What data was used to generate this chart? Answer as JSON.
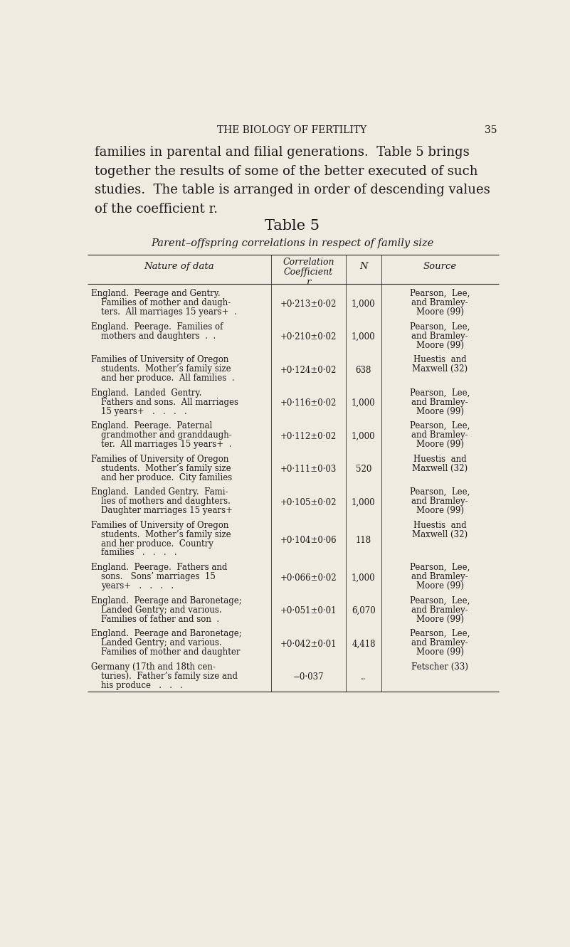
{
  "bg_color": "#f0ebe0",
  "page_number": "35",
  "header_text": "THE BIOLOGY OF FERTILITY",
  "intro_text": "families in parental and filial generations.  Table 5 brings\ntogether the results of some of the better executed of such\nstudies.  The table is arranged in order of descending values\nof the coefficient r.",
  "table_title": "Table 5",
  "table_subtitle": "Parent–offspring correlations in respect of family size",
  "rows": [
    {
      "nature": "England.  Peerage and Gentry.\nFamilies of mother and daugh-\nters.  All marriages 15 years+  .",
      "r": "+0·213±0·02",
      "n": "1,000",
      "source": "Pearson,  Lee,\nand Bramley-\nMoore (99)"
    },
    {
      "nature": "England.  Peerage.  Families of\nmothers and daughters  .  .",
      "r": "+0·210±0·02",
      "n": "1,000",
      "source": "Pearson,  Lee,\nand Bramley-\nMoore (99)"
    },
    {
      "nature": "Families of University of Oregon\nstudents.  Mother’s family size\nand her produce.  All families  .",
      "r": "+0·124±0·02",
      "n": "638",
      "source": "Huestis  and\nMaxwell (32)"
    },
    {
      "nature": "England.  Landed  Gentry.\nFathers and sons.  All marriages\n15 years+   .   .   .   .",
      "r": "+0·116±0·02",
      "n": "1,000",
      "source": "Pearson,  Lee,\nand Bramley-\nMoore (99)"
    },
    {
      "nature": "England.  Peerage.  Paternal\ngrandmother and granddaugh-\nter.  All marriages 15 years+  .",
      "r": "+0·112±0·02",
      "n": "1,000",
      "source": "Pearson,  Lee,\nand Bramley-\nMoore (99)"
    },
    {
      "nature": "Families of University of Oregon\nstudents.  Mother’s family size\nand her produce.  City families",
      "r": "+0·111±0·03",
      "n": "520",
      "source": "Huestis  and\nMaxwell (32)"
    },
    {
      "nature": "England.  Landed Gentry.  Fami-\nlies of mothers and daughters.\nDaughter marriages 15 years+",
      "r": "+0·105±0·02",
      "n": "1,000",
      "source": "Pearson,  Lee,\nand Bramley-\nMoore (99)"
    },
    {
      "nature": "Families of University of Oregon\nstudents.  Mother’s family size\nand her produce.  Country\nfamilies   .   .   .   .",
      "r": "+0·104±0·06",
      "n": "118",
      "source": "Huestis  and\nMaxwell (32)"
    },
    {
      "nature": "England.  Peerage.  Fathers and\nsons.   Sons’ marriages  15\nyears+   .   .   .   .",
      "r": "+0·066±0·02",
      "n": "1,000",
      "source": "Pearson,  Lee,\nand Bramley-\nMoore (99)"
    },
    {
      "nature": "England.  Peerage and Baronetage;\nLanded Gentry; and various.\nFamilies of father and son  .",
      "r": "+0·051±0·01",
      "n": "6,070",
      "source": "Pearson,  Lee,\nand Bramley-\nMoore (99)"
    },
    {
      "nature": "England.  Peerage and Baronetage;\nLanded Gentry; and various.\nFamilies of mother and daughter",
      "r": "+0·042±0·01",
      "n": "4,418",
      "source": "Pearson,  Lee,\nand Bramley-\nMoore (99)"
    },
    {
      "nature": "Germany (17th and 18th cen-\nturies).  Father’s family size and\nhis produce   .   .   .",
      "r": "−0·037",
      "n": "..",
      "source": "Fetscher (33)"
    }
  ],
  "font_size_body": 8.5,
  "text_color": "#1a1a1a",
  "line_color": "#2a2a2a"
}
